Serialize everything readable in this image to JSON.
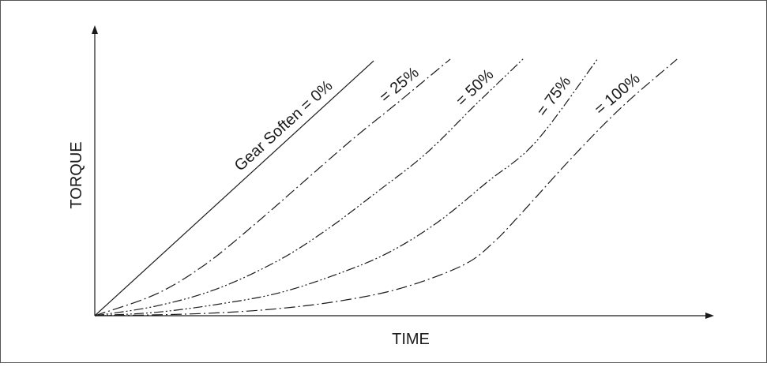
{
  "chart_data": {
    "type": "line",
    "title": "",
    "xlabel": "TIME",
    "ylabel": "TORQUE",
    "xlim": [
      0,
      100
    ],
    "ylim": [
      0,
      100
    ],
    "grid": false,
    "legend": "none",
    "colors": {
      "line": "#1a1a1a",
      "frame": "#555555",
      "background": "#ffffff"
    },
    "series": [
      {
        "label": "Gear Soften = 0%",
        "style": "solid",
        "x": [
          0,
          45.5
        ],
        "y": [
          0,
          89.7
        ]
      },
      {
        "label": "= 25%",
        "style": "dash-dot",
        "x": [
          0,
          10,
          18,
          26,
          34,
          42,
          50,
          58
        ],
        "y": [
          0,
          7.6,
          18,
          32,
          47,
          62,
          76,
          90.3
        ]
      },
      {
        "label": "= 50%",
        "style": "dash-dot-dot",
        "x": [
          0,
          10,
          20,
          30,
          38,
          46,
          54,
          62,
          70
        ],
        "y": [
          0,
          3.4,
          9.5,
          19.5,
          30.5,
          43.5,
          57,
          74,
          90.6
        ]
      },
      {
        "label": "= 75%",
        "style": "dash-dot-dot",
        "x": [
          0,
          10,
          20,
          30,
          40,
          48,
          56,
          64,
          72,
          82
        ],
        "y": [
          0,
          1.2,
          4,
          8,
          15,
          22.3,
          33,
          47,
          61.3,
          90.3
        ]
      },
      {
        "label": "= 100%",
        "style": "dash-dot",
        "x": [
          0,
          10,
          20,
          30,
          40,
          50,
          60,
          65,
          70,
          78,
          86,
          95
        ],
        "y": [
          0,
          0.3,
          1,
          2.5,
          5.2,
          9.7,
          17.7,
          25.7,
          37,
          56,
          73.5,
          90.3
        ]
      }
    ]
  }
}
